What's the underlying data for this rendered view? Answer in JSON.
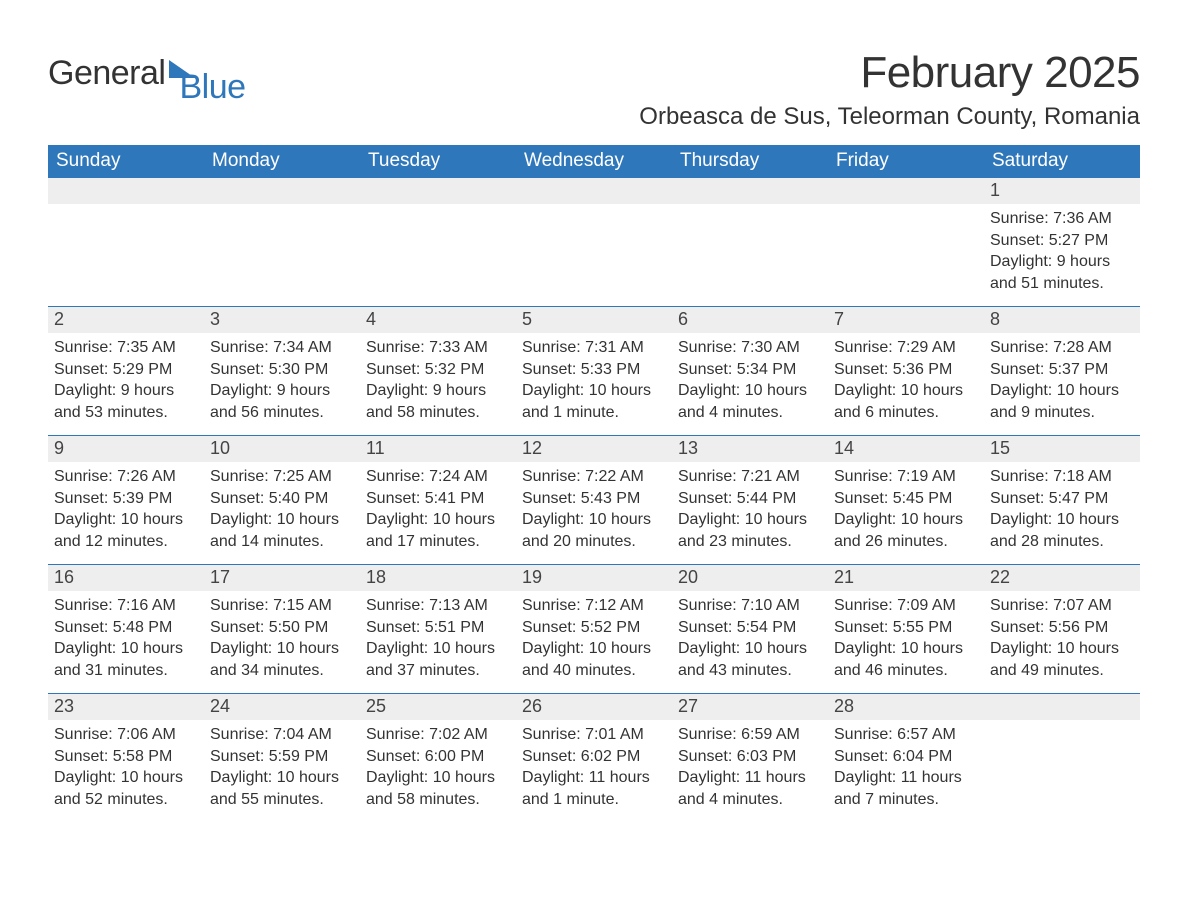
{
  "logo": {
    "text_general": "General",
    "text_blue": "Blue",
    "accent_color": "#2f77bb"
  },
  "title": "February 2025",
  "subtitle": "Orbeasca de Sus, Teleorman County, Romania",
  "colors": {
    "header_bg": "#2f77bb",
    "header_text": "#ffffff",
    "daynum_bg": "#eeeeee",
    "body_text": "#333333",
    "rule": "#2f77bb"
  },
  "weekdays": [
    "Sunday",
    "Monday",
    "Tuesday",
    "Wednesday",
    "Thursday",
    "Friday",
    "Saturday"
  ],
  "weeks": [
    [
      {
        "n": "",
        "sunrise": "",
        "sunset": "",
        "day_a": "",
        "day_b": ""
      },
      {
        "n": "",
        "sunrise": "",
        "sunset": "",
        "day_a": "",
        "day_b": ""
      },
      {
        "n": "",
        "sunrise": "",
        "sunset": "",
        "day_a": "",
        "day_b": ""
      },
      {
        "n": "",
        "sunrise": "",
        "sunset": "",
        "day_a": "",
        "day_b": ""
      },
      {
        "n": "",
        "sunrise": "",
        "sunset": "",
        "day_a": "",
        "day_b": ""
      },
      {
        "n": "",
        "sunrise": "",
        "sunset": "",
        "day_a": "",
        "day_b": ""
      },
      {
        "n": "1",
        "sunrise": "Sunrise: 7:36 AM",
        "sunset": "Sunset: 5:27 PM",
        "day_a": "Daylight: 9 hours",
        "day_b": "and 51 minutes."
      }
    ],
    [
      {
        "n": "2",
        "sunrise": "Sunrise: 7:35 AM",
        "sunset": "Sunset: 5:29 PM",
        "day_a": "Daylight: 9 hours",
        "day_b": "and 53 minutes."
      },
      {
        "n": "3",
        "sunrise": "Sunrise: 7:34 AM",
        "sunset": "Sunset: 5:30 PM",
        "day_a": "Daylight: 9 hours",
        "day_b": "and 56 minutes."
      },
      {
        "n": "4",
        "sunrise": "Sunrise: 7:33 AM",
        "sunset": "Sunset: 5:32 PM",
        "day_a": "Daylight: 9 hours",
        "day_b": "and 58 minutes."
      },
      {
        "n": "5",
        "sunrise": "Sunrise: 7:31 AM",
        "sunset": "Sunset: 5:33 PM",
        "day_a": "Daylight: 10 hours",
        "day_b": "and 1 minute."
      },
      {
        "n": "6",
        "sunrise": "Sunrise: 7:30 AM",
        "sunset": "Sunset: 5:34 PM",
        "day_a": "Daylight: 10 hours",
        "day_b": "and 4 minutes."
      },
      {
        "n": "7",
        "sunrise": "Sunrise: 7:29 AM",
        "sunset": "Sunset: 5:36 PM",
        "day_a": "Daylight: 10 hours",
        "day_b": "and 6 minutes."
      },
      {
        "n": "8",
        "sunrise": "Sunrise: 7:28 AM",
        "sunset": "Sunset: 5:37 PM",
        "day_a": "Daylight: 10 hours",
        "day_b": "and 9 minutes."
      }
    ],
    [
      {
        "n": "9",
        "sunrise": "Sunrise: 7:26 AM",
        "sunset": "Sunset: 5:39 PM",
        "day_a": "Daylight: 10 hours",
        "day_b": "and 12 minutes."
      },
      {
        "n": "10",
        "sunrise": "Sunrise: 7:25 AM",
        "sunset": "Sunset: 5:40 PM",
        "day_a": "Daylight: 10 hours",
        "day_b": "and 14 minutes."
      },
      {
        "n": "11",
        "sunrise": "Sunrise: 7:24 AM",
        "sunset": "Sunset: 5:41 PM",
        "day_a": "Daylight: 10 hours",
        "day_b": "and 17 minutes."
      },
      {
        "n": "12",
        "sunrise": "Sunrise: 7:22 AM",
        "sunset": "Sunset: 5:43 PM",
        "day_a": "Daylight: 10 hours",
        "day_b": "and 20 minutes."
      },
      {
        "n": "13",
        "sunrise": "Sunrise: 7:21 AM",
        "sunset": "Sunset: 5:44 PM",
        "day_a": "Daylight: 10 hours",
        "day_b": "and 23 minutes."
      },
      {
        "n": "14",
        "sunrise": "Sunrise: 7:19 AM",
        "sunset": "Sunset: 5:45 PM",
        "day_a": "Daylight: 10 hours",
        "day_b": "and 26 minutes."
      },
      {
        "n": "15",
        "sunrise": "Sunrise: 7:18 AM",
        "sunset": "Sunset: 5:47 PM",
        "day_a": "Daylight: 10 hours",
        "day_b": "and 28 minutes."
      }
    ],
    [
      {
        "n": "16",
        "sunrise": "Sunrise: 7:16 AM",
        "sunset": "Sunset: 5:48 PM",
        "day_a": "Daylight: 10 hours",
        "day_b": "and 31 minutes."
      },
      {
        "n": "17",
        "sunrise": "Sunrise: 7:15 AM",
        "sunset": "Sunset: 5:50 PM",
        "day_a": "Daylight: 10 hours",
        "day_b": "and 34 minutes."
      },
      {
        "n": "18",
        "sunrise": "Sunrise: 7:13 AM",
        "sunset": "Sunset: 5:51 PM",
        "day_a": "Daylight: 10 hours",
        "day_b": "and 37 minutes."
      },
      {
        "n": "19",
        "sunrise": "Sunrise: 7:12 AM",
        "sunset": "Sunset: 5:52 PM",
        "day_a": "Daylight: 10 hours",
        "day_b": "and 40 minutes."
      },
      {
        "n": "20",
        "sunrise": "Sunrise: 7:10 AM",
        "sunset": "Sunset: 5:54 PM",
        "day_a": "Daylight: 10 hours",
        "day_b": "and 43 minutes."
      },
      {
        "n": "21",
        "sunrise": "Sunrise: 7:09 AM",
        "sunset": "Sunset: 5:55 PM",
        "day_a": "Daylight: 10 hours",
        "day_b": "and 46 minutes."
      },
      {
        "n": "22",
        "sunrise": "Sunrise: 7:07 AM",
        "sunset": "Sunset: 5:56 PM",
        "day_a": "Daylight: 10 hours",
        "day_b": "and 49 minutes."
      }
    ],
    [
      {
        "n": "23",
        "sunrise": "Sunrise: 7:06 AM",
        "sunset": "Sunset: 5:58 PM",
        "day_a": "Daylight: 10 hours",
        "day_b": "and 52 minutes."
      },
      {
        "n": "24",
        "sunrise": "Sunrise: 7:04 AM",
        "sunset": "Sunset: 5:59 PM",
        "day_a": "Daylight: 10 hours",
        "day_b": "and 55 minutes."
      },
      {
        "n": "25",
        "sunrise": "Sunrise: 7:02 AM",
        "sunset": "Sunset: 6:00 PM",
        "day_a": "Daylight: 10 hours",
        "day_b": "and 58 minutes."
      },
      {
        "n": "26",
        "sunrise": "Sunrise: 7:01 AM",
        "sunset": "Sunset: 6:02 PM",
        "day_a": "Daylight: 11 hours",
        "day_b": "and 1 minute."
      },
      {
        "n": "27",
        "sunrise": "Sunrise: 6:59 AM",
        "sunset": "Sunset: 6:03 PM",
        "day_a": "Daylight: 11 hours",
        "day_b": "and 4 minutes."
      },
      {
        "n": "28",
        "sunrise": "Sunrise: 6:57 AM",
        "sunset": "Sunset: 6:04 PM",
        "day_a": "Daylight: 11 hours",
        "day_b": "and 7 minutes."
      },
      {
        "n": "",
        "sunrise": "",
        "sunset": "",
        "day_a": "",
        "day_b": ""
      }
    ]
  ]
}
